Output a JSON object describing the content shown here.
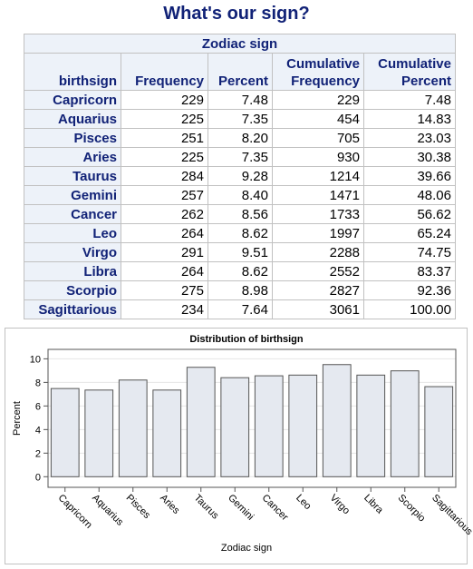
{
  "title": "What's our sign?",
  "table": {
    "caption": "Zodiac sign",
    "headers": [
      [
        "birthsign"
      ],
      [
        "Frequency"
      ],
      [
        "Percent"
      ],
      [
        "Cumulative",
        "Frequency"
      ],
      [
        "Cumulative",
        "Percent"
      ]
    ],
    "rows": [
      [
        "Capricorn",
        "229",
        "7.48",
        "229",
        "7.48"
      ],
      [
        "Aquarius",
        "225",
        "7.35",
        "454",
        "14.83"
      ],
      [
        "Pisces",
        "251",
        "8.20",
        "705",
        "23.03"
      ],
      [
        "Aries",
        "225",
        "7.35",
        "930",
        "30.38"
      ],
      [
        "Taurus",
        "284",
        "9.28",
        "1214",
        "39.66"
      ],
      [
        "Gemini",
        "257",
        "8.40",
        "1471",
        "48.06"
      ],
      [
        "Cancer",
        "262",
        "8.56",
        "1733",
        "56.62"
      ],
      [
        "Leo",
        "264",
        "8.62",
        "1997",
        "65.24"
      ],
      [
        "Virgo",
        "291",
        "9.51",
        "2288",
        "74.75"
      ],
      [
        "Libra",
        "264",
        "8.62",
        "2552",
        "83.37"
      ],
      [
        "Scorpio",
        "275",
        "8.98",
        "2827",
        "92.36"
      ],
      [
        "Sagittarious",
        "234",
        "7.64",
        "3061",
        "100.00"
      ]
    ]
  },
  "chart_data": {
    "type": "bar",
    "title": "Distribution of birthsign",
    "xlabel": "Zodiac sign",
    "ylabel": "Percent",
    "categories": [
      "Capricorn",
      "Aquarius",
      "Pisces",
      "Aries",
      "Taurus",
      "Gemini",
      "Cancer",
      "Leo",
      "Virgo",
      "Libra",
      "Scorpio",
      "Sagittarious"
    ],
    "values": [
      7.48,
      7.35,
      8.2,
      7.35,
      9.28,
      8.4,
      8.56,
      8.62,
      9.51,
      8.62,
      8.98,
      7.64
    ],
    "color": "#e5e9f0",
    "ylim": [
      -0.9,
      10.8
    ],
    "yticks": [
      0,
      2,
      4,
      6,
      8,
      10
    ],
    "grid": true
  }
}
